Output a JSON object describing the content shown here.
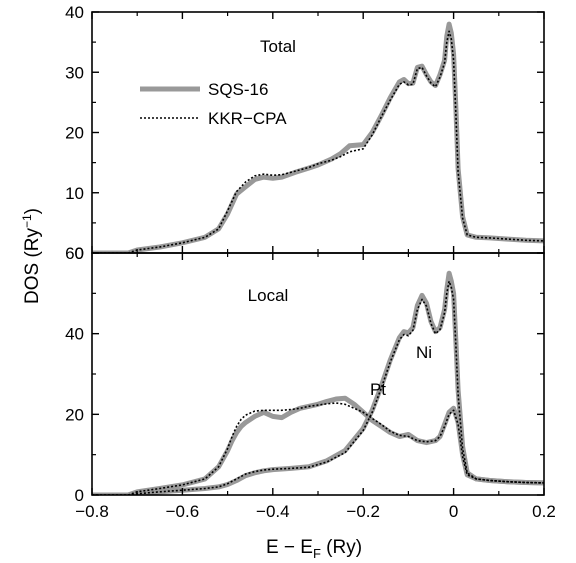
{
  "chart_data": [
    {
      "type": "line",
      "panel_label": "Total",
      "xlabel": "E − E_F (Ry)",
      "ylabel": "DOS (Ry^-1)",
      "xlim": [
        -0.8,
        0.2
      ],
      "ylim": [
        0,
        40
      ],
      "yticks": [
        "0",
        "10",
        "20",
        "30",
        "40"
      ],
      "xticks": [],
      "legend": {
        "placement": "top-left",
        "entries": [
          "SQS-16",
          "KKR−CPA"
        ]
      },
      "series": [
        {
          "name": "SQS-16",
          "style": "solid-thick",
          "color": "#999999",
          "x": [
            -0.8,
            -0.72,
            -0.7,
            -0.65,
            -0.6,
            -0.55,
            -0.52,
            -0.5,
            -0.48,
            -0.46,
            -0.44,
            -0.42,
            -0.4,
            -0.38,
            -0.35,
            -0.32,
            -0.3,
            -0.27,
            -0.25,
            -0.23,
            -0.2,
            -0.18,
            -0.16,
            -0.14,
            -0.12,
            -0.11,
            -0.1,
            -0.09,
            -0.08,
            -0.07,
            -0.06,
            -0.05,
            -0.04,
            -0.03,
            -0.02,
            -0.015,
            -0.01,
            -0.005,
            0.0,
            0.005,
            0.01,
            0.02,
            0.03,
            0.05,
            0.08,
            0.12,
            0.16,
            0.2
          ],
          "y": [
            0,
            0,
            0.5,
            1.0,
            1.7,
            2.6,
            4.0,
            6.5,
            9.8,
            11.0,
            12.2,
            12.6,
            12.4,
            12.6,
            13.4,
            14.1,
            14.6,
            15.6,
            16.5,
            17.8,
            18.0,
            20.0,
            22.8,
            25.8,
            28.4,
            28.8,
            28.1,
            28.2,
            30.8,
            31.0,
            29.6,
            28.4,
            27.8,
            29.6,
            32.0,
            36.0,
            38.0,
            36.5,
            33.0,
            24.0,
            14.0,
            6.0,
            3.0,
            2.6,
            2.5,
            2.3,
            2.1,
            2.0
          ]
        },
        {
          "name": "KKR−CPA",
          "style": "dotted",
          "color": "#000000",
          "x": [
            -0.8,
            -0.72,
            -0.7,
            -0.65,
            -0.6,
            -0.55,
            -0.52,
            -0.5,
            -0.48,
            -0.46,
            -0.44,
            -0.42,
            -0.4,
            -0.38,
            -0.35,
            -0.32,
            -0.3,
            -0.27,
            -0.25,
            -0.23,
            -0.2,
            -0.18,
            -0.16,
            -0.14,
            -0.12,
            -0.11,
            -0.1,
            -0.09,
            -0.08,
            -0.07,
            -0.06,
            -0.05,
            -0.04,
            -0.03,
            -0.02,
            -0.015,
            -0.01,
            -0.005,
            0.0,
            0.005,
            0.01,
            0.02,
            0.03,
            0.05,
            0.08,
            0.12,
            0.16,
            0.2
          ],
          "y": [
            0,
            0,
            0.5,
            1.0,
            1.7,
            2.6,
            4.0,
            7.0,
            10.2,
            11.8,
            12.8,
            13.1,
            12.9,
            13.0,
            13.6,
            14.2,
            14.8,
            15.4,
            16.0,
            16.8,
            17.3,
            19.6,
            22.6,
            25.4,
            28.0,
            28.4,
            27.9,
            28.0,
            30.6,
            30.8,
            29.4,
            28.2,
            27.6,
            29.2,
            31.6,
            35.0,
            36.8,
            35.5,
            32.0,
            23.0,
            13.5,
            5.8,
            3.0,
            2.6,
            2.5,
            2.3,
            2.1,
            2.0
          ]
        }
      ]
    },
    {
      "type": "line",
      "panel_label": "Local",
      "xlabel": "E − E_F (Ry)",
      "ylabel": "DOS (Ry^-1)",
      "xlim": [
        -0.8,
        0.2
      ],
      "ylim": [
        0,
        60
      ],
      "yticks": [
        "0",
        "20",
        "40",
        "60"
      ],
      "xticks": [
        "−0.8",
        "−0.6",
        "−0.4",
        "−0.2",
        "0",
        "0.2"
      ],
      "annotations": [
        "Pt",
        "Ni"
      ],
      "series": [
        {
          "name": "Pt SQS-16",
          "style": "solid-thick",
          "color": "#999999",
          "x": [
            -0.8,
            -0.72,
            -0.7,
            -0.65,
            -0.6,
            -0.55,
            -0.52,
            -0.5,
            -0.49,
            -0.48,
            -0.47,
            -0.46,
            -0.44,
            -0.42,
            -0.4,
            -0.38,
            -0.36,
            -0.34,
            -0.32,
            -0.3,
            -0.28,
            -0.26,
            -0.24,
            -0.22,
            -0.2,
            -0.18,
            -0.16,
            -0.14,
            -0.12,
            -0.1,
            -0.08,
            -0.06,
            -0.04,
            -0.03,
            -0.02,
            -0.01,
            0.0,
            0.01,
            0.02,
            0.03,
            0.05,
            0.08,
            0.12,
            0.16,
            0.2
          ],
          "y": [
            0,
            0,
            0.8,
            1.6,
            2.5,
            4.0,
            7.0,
            11.0,
            13.5,
            15.5,
            17.0,
            18.0,
            19.5,
            20.5,
            19.5,
            19.2,
            20.5,
            21.5,
            22.0,
            22.5,
            23.2,
            23.8,
            24.0,
            22.5,
            20.5,
            18.5,
            17.0,
            15.5,
            14.5,
            15.0,
            13.5,
            13.0,
            13.5,
            14.5,
            17.5,
            20.5,
            21.5,
            18.0,
            10.0,
            5.0,
            4.0,
            3.6,
            3.3,
            3.1,
            3.0
          ]
        },
        {
          "name": "Pt KKR−CPA",
          "style": "dotted",
          "color": "#000000",
          "x": [
            -0.8,
            -0.72,
            -0.7,
            -0.65,
            -0.6,
            -0.55,
            -0.52,
            -0.5,
            -0.49,
            -0.48,
            -0.47,
            -0.46,
            -0.44,
            -0.42,
            -0.4,
            -0.38,
            -0.36,
            -0.34,
            -0.32,
            -0.3,
            -0.28,
            -0.26,
            -0.24,
            -0.22,
            -0.2,
            -0.18,
            -0.16,
            -0.14,
            -0.12,
            -0.1,
            -0.08,
            -0.06,
            -0.04,
            -0.03,
            -0.02,
            -0.01,
            0.0,
            0.01,
            0.02,
            0.03,
            0.05,
            0.08,
            0.12,
            0.16,
            0.2
          ],
          "y": [
            0,
            0,
            0.8,
            1.6,
            2.5,
            4.0,
            7.0,
            11.5,
            14.5,
            17.0,
            18.8,
            19.8,
            20.8,
            21.0,
            21.0,
            21.0,
            21.2,
            21.5,
            22.0,
            22.3,
            22.6,
            22.8,
            22.5,
            21.5,
            20.5,
            19.0,
            17.5,
            15.8,
            14.8,
            14.5,
            13.5,
            13.2,
            13.5,
            14.5,
            17.0,
            20.0,
            21.0,
            17.5,
            9.5,
            5.0,
            4.0,
            3.6,
            3.3,
            3.1,
            3.0
          ]
        },
        {
          "name": "Ni SQS-16",
          "style": "solid-thick",
          "color": "#999999",
          "x": [
            -0.8,
            -0.72,
            -0.7,
            -0.65,
            -0.6,
            -0.55,
            -0.52,
            -0.5,
            -0.48,
            -0.46,
            -0.44,
            -0.42,
            -0.4,
            -0.36,
            -0.32,
            -0.28,
            -0.24,
            -0.2,
            -0.18,
            -0.16,
            -0.14,
            -0.12,
            -0.11,
            -0.1,
            -0.09,
            -0.08,
            -0.07,
            -0.06,
            -0.05,
            -0.04,
            -0.03,
            -0.02,
            -0.015,
            -0.01,
            -0.005,
            0.0,
            0.005,
            0.01,
            0.02,
            0.03,
            0.05,
            0.08,
            0.12,
            0.16,
            0.2
          ],
          "y": [
            0,
            0,
            0.3,
            0.8,
            1.2,
            1.6,
            2.0,
            2.6,
            3.6,
            4.8,
            5.5,
            6.0,
            6.3,
            6.6,
            7.0,
            8.5,
            11.0,
            16.5,
            21.0,
            27.0,
            33.5,
            39.0,
            40.5,
            40.2,
            41.5,
            47.0,
            49.5,
            47.5,
            43.0,
            40.5,
            41.5,
            46.0,
            51.0,
            55.0,
            53.0,
            50.0,
            38.0,
            26.0,
            12.0,
            5.5,
            4.0,
            3.6,
            3.3,
            3.1,
            3.0
          ]
        },
        {
          "name": "Ni KKR−CPA",
          "style": "dotted",
          "color": "#000000",
          "x": [
            -0.8,
            -0.72,
            -0.7,
            -0.65,
            -0.6,
            -0.55,
            -0.52,
            -0.5,
            -0.48,
            -0.46,
            -0.44,
            -0.42,
            -0.4,
            -0.36,
            -0.32,
            -0.28,
            -0.24,
            -0.2,
            -0.18,
            -0.16,
            -0.14,
            -0.12,
            -0.11,
            -0.1,
            -0.09,
            -0.08,
            -0.07,
            -0.06,
            -0.05,
            -0.04,
            -0.03,
            -0.02,
            -0.015,
            -0.01,
            -0.005,
            0.0,
            0.005,
            0.01,
            0.02,
            0.03,
            0.05,
            0.08,
            0.12,
            0.16,
            0.2
          ],
          "y": [
            0,
            0,
            0.3,
            0.8,
            1.2,
            1.6,
            2.0,
            2.8,
            4.0,
            5.2,
            5.8,
            6.2,
            6.4,
            6.6,
            6.9,
            8.2,
            10.5,
            16.0,
            20.5,
            26.5,
            33.0,
            38.5,
            39.8,
            39.5,
            40.8,
            46.0,
            48.5,
            46.8,
            42.5,
            40.0,
            41.0,
            45.2,
            50.0,
            53.0,
            51.5,
            48.5,
            37.0,
            25.0,
            11.5,
            5.5,
            4.0,
            3.6,
            3.3,
            3.1,
            3.0
          ]
        }
      ]
    }
  ]
}
